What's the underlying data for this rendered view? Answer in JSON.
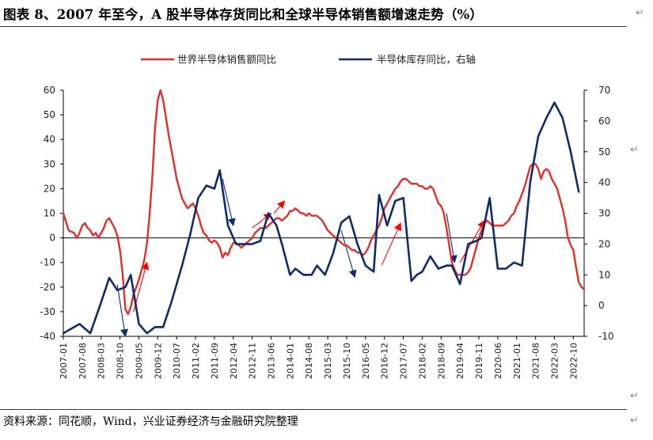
{
  "title": "图表 8、2007 年至今，A 股半导体存货同比和全球半导体销售额增速走势（%）",
  "source": "资料来源：同花顺，Wind，兴业证券经济与金融研究院整理",
  "paragraph_mark": "↵",
  "chart_data": {
    "type": "line",
    "title": "",
    "xlabel": "",
    "ylabel": "",
    "y2label": "",
    "legend_position": "top",
    "grid": false,
    "ylim": [
      -40,
      60
    ],
    "y2lim": [
      -10,
      70
    ],
    "yticks": [
      -40,
      -30,
      -20,
      -10,
      0,
      10,
      20,
      30,
      40,
      50,
      60
    ],
    "y2ticks": [
      -10,
      0,
      10,
      20,
      30,
      40,
      50,
      60,
      70
    ],
    "x_tick_labels": [
      "2007-01",
      "2007-08",
      "2008-03",
      "2008-10",
      "2009-05",
      "2009-12",
      "2010-07",
      "2011-02",
      "2011-09",
      "2012-04",
      "2012-11",
      "2013-06",
      "2014-01",
      "2014-08",
      "2015-03",
      "2015-10",
      "2016-05",
      "2016-12",
      "2017-07",
      "2018-02",
      "2018-09",
      "2019-04",
      "2019-11",
      "2020-06",
      "2021-01",
      "2021-08",
      "2022-03",
      "2022-10"
    ],
    "x_start": "2007-01",
    "x_end": "2022-12",
    "series": [
      {
        "name": "世界半导体销售额同比",
        "axis": "left",
        "color": "#e0302b",
        "points": [
          [
            "2007-01",
            10
          ],
          [
            "2007-03",
            3
          ],
          [
            "2007-05",
            2
          ],
          [
            "2007-06",
            0
          ],
          [
            "2007-07",
            2
          ],
          [
            "2007-08",
            5
          ],
          [
            "2007-09",
            6
          ],
          [
            "2007-10",
            4
          ],
          [
            "2007-11",
            3
          ],
          [
            "2007-12",
            1
          ],
          [
            "2008-01",
            2
          ],
          [
            "2008-02",
            0
          ],
          [
            "2008-03",
            2
          ],
          [
            "2008-04",
            4
          ],
          [
            "2008-05",
            7
          ],
          [
            "2008-06",
            8
          ],
          [
            "2008-07",
            6
          ],
          [
            "2008-08",
            4
          ],
          [
            "2008-09",
            1
          ],
          [
            "2008-10",
            -5
          ],
          [
            "2008-11",
            -15
          ],
          [
            "2008-12",
            -29
          ],
          [
            "2009-01",
            -31
          ],
          [
            "2009-02",
            -28
          ],
          [
            "2009-03",
            -23
          ],
          [
            "2009-04",
            -20
          ],
          [
            "2009-05",
            -17
          ],
          [
            "2009-06",
            -13
          ],
          [
            "2009-07",
            -9
          ],
          [
            "2009-08",
            -2
          ],
          [
            "2009-09",
            10
          ],
          [
            "2009-10",
            25
          ],
          [
            "2009-11",
            45
          ],
          [
            "2009-12",
            56
          ],
          [
            "2010-01",
            60
          ],
          [
            "2010-02",
            56
          ],
          [
            "2010-03",
            49
          ],
          [
            "2010-04",
            42
          ],
          [
            "2010-05",
            36
          ],
          [
            "2010-06",
            30
          ],
          [
            "2010-07",
            24
          ],
          [
            "2010-08",
            20
          ],
          [
            "2010-09",
            16
          ],
          [
            "2010-10",
            14
          ],
          [
            "2010-11",
            12
          ],
          [
            "2010-12",
            13
          ],
          [
            "2011-01",
            14
          ],
          [
            "2011-02",
            12
          ],
          [
            "2011-03",
            9
          ],
          [
            "2011-04",
            5
          ],
          [
            "2011-05",
            2
          ],
          [
            "2011-06",
            1
          ],
          [
            "2011-07",
            -1
          ],
          [
            "2011-08",
            -2
          ],
          [
            "2011-09",
            -1
          ],
          [
            "2011-10",
            -2
          ],
          [
            "2011-11",
            -4
          ],
          [
            "2011-12",
            -8
          ],
          [
            "2012-01",
            -6
          ],
          [
            "2012-02",
            -7
          ],
          [
            "2012-03",
            -4
          ],
          [
            "2012-04",
            -2
          ],
          [
            "2012-05",
            -2
          ],
          [
            "2012-06",
            -3
          ],
          [
            "2012-07",
            -4
          ],
          [
            "2012-08",
            -3
          ],
          [
            "2012-09",
            -2
          ],
          [
            "2012-10",
            -1
          ],
          [
            "2012-11",
            0
          ],
          [
            "2012-12",
            2
          ],
          [
            "2013-01",
            3
          ],
          [
            "2013-02",
            4
          ],
          [
            "2013-03",
            4
          ],
          [
            "2013-04",
            4
          ],
          [
            "2013-05",
            5
          ],
          [
            "2013-06",
            6
          ],
          [
            "2013-07",
            7
          ],
          [
            "2013-08",
            8
          ],
          [
            "2013-09",
            8
          ],
          [
            "2013-10",
            7
          ],
          [
            "2013-11",
            8
          ],
          [
            "2013-12",
            9
          ],
          [
            "2014-01",
            11
          ],
          [
            "2014-02",
            11
          ],
          [
            "2014-03",
            12
          ],
          [
            "2014-04",
            11
          ],
          [
            "2014-05",
            10
          ],
          [
            "2014-06",
            10
          ],
          [
            "2014-07",
            9
          ],
          [
            "2014-08",
            10
          ],
          [
            "2014-09",
            9
          ],
          [
            "2014-10",
            9
          ],
          [
            "2014-11",
            9
          ],
          [
            "2014-12",
            8
          ],
          [
            "2015-01",
            7
          ],
          [
            "2015-02",
            5
          ],
          [
            "2015-03",
            3
          ],
          [
            "2015-04",
            2
          ],
          [
            "2015-05",
            1
          ],
          [
            "2015-06",
            0
          ],
          [
            "2015-07",
            -1
          ],
          [
            "2015-08",
            -2
          ],
          [
            "2015-09",
            -3
          ],
          [
            "2015-10",
            -3
          ],
          [
            "2015-11",
            -4
          ],
          [
            "2015-12",
            -5
          ],
          [
            "2016-01",
            -5
          ],
          [
            "2016-02",
            -6
          ],
          [
            "2016-03",
            -6
          ],
          [
            "2016-04",
            -7
          ],
          [
            "2016-05",
            -6
          ],
          [
            "2016-06",
            -4
          ],
          [
            "2016-07",
            -1
          ],
          [
            "2016-08",
            1
          ],
          [
            "2016-09",
            3
          ],
          [
            "2016-10",
            5
          ],
          [
            "2016-11",
            8
          ],
          [
            "2016-12",
            12
          ],
          [
            "2017-01",
            14
          ],
          [
            "2017-02",
            16
          ],
          [
            "2017-03",
            18
          ],
          [
            "2017-04",
            20
          ],
          [
            "2017-05",
            21
          ],
          [
            "2017-06",
            23
          ],
          [
            "2017-07",
            24
          ],
          [
            "2017-08",
            24
          ],
          [
            "2017-09",
            23
          ],
          [
            "2017-10",
            22
          ],
          [
            "2017-11",
            22
          ],
          [
            "2017-12",
            22
          ],
          [
            "2018-01",
            21
          ],
          [
            "2018-02",
            21
          ],
          [
            "2018-03",
            20
          ],
          [
            "2018-04",
            20
          ],
          [
            "2018-05",
            21
          ],
          [
            "2018-06",
            20
          ],
          [
            "2018-07",
            17
          ],
          [
            "2018-08",
            14
          ],
          [
            "2018-09",
            13
          ],
          [
            "2018-10",
            10
          ],
          [
            "2018-11",
            4
          ],
          [
            "2018-12",
            -3
          ],
          [
            "2019-01",
            -10
          ],
          [
            "2019-02",
            -13
          ],
          [
            "2019-03",
            -15
          ],
          [
            "2019-04",
            -15
          ],
          [
            "2019-05",
            -15
          ],
          [
            "2019-06",
            -15
          ],
          [
            "2019-07",
            -14
          ],
          [
            "2019-08",
            -12
          ],
          [
            "2019-09",
            -8
          ],
          [
            "2019-10",
            -4
          ],
          [
            "2019-11",
            0
          ],
          [
            "2019-12",
            3
          ],
          [
            "2020-01",
            6
          ],
          [
            "2020-02",
            7
          ],
          [
            "2020-03",
            6
          ],
          [
            "2020-04",
            5
          ],
          [
            "2020-05",
            5
          ],
          [
            "2020-06",
            5
          ],
          [
            "2020-07",
            5
          ],
          [
            "2020-08",
            5
          ],
          [
            "2020-09",
            6
          ],
          [
            "2020-10",
            7
          ],
          [
            "2020-11",
            9
          ],
          [
            "2020-12",
            10
          ],
          [
            "2021-01",
            13
          ],
          [
            "2021-02",
            15
          ],
          [
            "2021-03",
            18
          ],
          [
            "2021-04",
            21
          ],
          [
            "2021-05",
            25
          ],
          [
            "2021-06",
            29
          ],
          [
            "2021-07",
            30
          ],
          [
            "2021-08",
            30
          ],
          [
            "2021-09",
            28
          ],
          [
            "2021-10",
            24
          ],
          [
            "2021-11",
            27
          ],
          [
            "2021-12",
            28
          ],
          [
            "2022-01",
            27
          ],
          [
            "2022-02",
            24
          ],
          [
            "2022-03",
            22
          ],
          [
            "2022-04",
            20
          ],
          [
            "2022-05",
            16
          ],
          [
            "2022-06",
            12
          ],
          [
            "2022-07",
            7
          ],
          [
            "2022-08",
            0
          ],
          [
            "2022-09",
            -3
          ],
          [
            "2022-10",
            -5
          ],
          [
            "2022-11",
            -12
          ],
          [
            "2022-12",
            -18
          ],
          [
            "2023-01",
            -20
          ],
          [
            "2023-02",
            -21
          ]
        ]
      },
      {
        "name": "半导体库存同比，右轴",
        "axis": "right",
        "color": "#102b6b",
        "points": [
          [
            "2007-01",
            -9
          ],
          [
            "2007-07",
            -6
          ],
          [
            "2007-11",
            -9
          ],
          [
            "2008-03",
            1
          ],
          [
            "2008-06",
            9
          ],
          [
            "2008-09",
            5
          ],
          [
            "2008-12",
            6
          ],
          [
            "2009-02",
            10
          ],
          [
            "2009-05",
            -6
          ],
          [
            "2009-08",
            -9
          ],
          [
            "2009-11",
            -7
          ],
          [
            "2010-02",
            -7
          ],
          [
            "2010-05",
            1
          ],
          [
            "2010-09",
            13
          ],
          [
            "2010-12",
            23
          ],
          [
            "2011-03",
            35
          ],
          [
            "2011-06",
            39
          ],
          [
            "2011-09",
            38
          ],
          [
            "2011-11",
            44
          ],
          [
            "2012-02",
            26
          ],
          [
            "2012-05",
            20
          ],
          [
            "2012-08",
            20
          ],
          [
            "2012-11",
            20
          ],
          [
            "2013-02",
            21
          ],
          [
            "2013-05",
            30
          ],
          [
            "2013-08",
            26
          ],
          [
            "2013-10",
            20
          ],
          [
            "2014-01",
            10
          ],
          [
            "2014-03",
            12
          ],
          [
            "2014-06",
            10
          ],
          [
            "2014-09",
            10
          ],
          [
            "2014-11",
            13
          ],
          [
            "2015-02",
            10
          ],
          [
            "2015-05",
            17
          ],
          [
            "2015-08",
            27
          ],
          [
            "2015-11",
            29
          ],
          [
            "2016-02",
            20
          ],
          [
            "2016-05",
            13
          ],
          [
            "2016-08",
            11
          ],
          [
            "2016-10",
            36
          ],
          [
            "2017-01",
            26
          ],
          [
            "2017-04",
            34
          ],
          [
            "2017-07",
            35
          ],
          [
            "2017-10",
            8
          ],
          [
            "2017-12",
            10
          ],
          [
            "2018-02",
            11
          ],
          [
            "2018-05",
            16
          ],
          [
            "2018-08",
            12
          ],
          [
            "2018-11",
            13
          ],
          [
            "2019-01",
            13
          ],
          [
            "2019-04",
            7
          ],
          [
            "2019-07",
            20
          ],
          [
            "2019-10",
            21
          ],
          [
            "2019-12",
            22
          ],
          [
            "2020-03",
            35
          ],
          [
            "2020-06",
            12
          ],
          [
            "2020-09",
            12
          ],
          [
            "2020-12",
            14
          ],
          [
            "2021-03",
            13
          ],
          [
            "2021-06",
            40
          ],
          [
            "2021-09",
            55
          ],
          [
            "2021-12",
            61
          ],
          [
            "2022-03",
            66
          ],
          [
            "2022-06",
            61
          ],
          [
            "2022-09",
            50
          ],
          [
            "2022-12",
            37
          ]
        ]
      }
    ],
    "annotations": [
      {
        "type": "arrow",
        "color": "#ff0000",
        "from": [
          "2009-03",
          -30
        ],
        "to": [
          "2009-08",
          -10
        ],
        "axis": "left"
      },
      {
        "type": "arrow",
        "color": "#102b6b",
        "from": [
          "2008-09",
          -19
        ],
        "to": [
          "2008-12",
          -40
        ],
        "axis": "left"
      },
      {
        "type": "arrow",
        "color": "#102b6b",
        "from": [
          "2011-12",
          24
        ],
        "to": [
          "2012-04",
          5
        ],
        "axis": "left"
      },
      {
        "type": "arrow",
        "color": "#ff0000",
        "from": [
          "2012-11",
          4
        ],
        "to": [
          "2013-06",
          10
        ],
        "axis": "left"
      },
      {
        "type": "arrow",
        "color": "#ff0000",
        "from": [
          "2013-07",
          10
        ],
        "to": [
          "2013-11",
          15
        ],
        "axis": "left"
      },
      {
        "type": "arrow",
        "color": "#102b6b",
        "from": [
          "2015-08",
          3
        ],
        "to": [
          "2016-01",
          -16
        ],
        "axis": "left"
      },
      {
        "type": "arrow",
        "color": "#ff0000",
        "from": [
          "2016-11",
          -11
        ],
        "to": [
          "2017-06",
          6
        ],
        "axis": "left"
      },
      {
        "type": "arrow",
        "color": "#102b6b",
        "from": [
          "2018-11",
          10
        ],
        "to": [
          "2019-02",
          -10
        ],
        "axis": "left"
      },
      {
        "type": "arrow",
        "color": "#ff0000",
        "from": [
          "2019-04",
          -10
        ],
        "to": [
          "2020-01",
          7
        ],
        "axis": "left"
      }
    ]
  }
}
